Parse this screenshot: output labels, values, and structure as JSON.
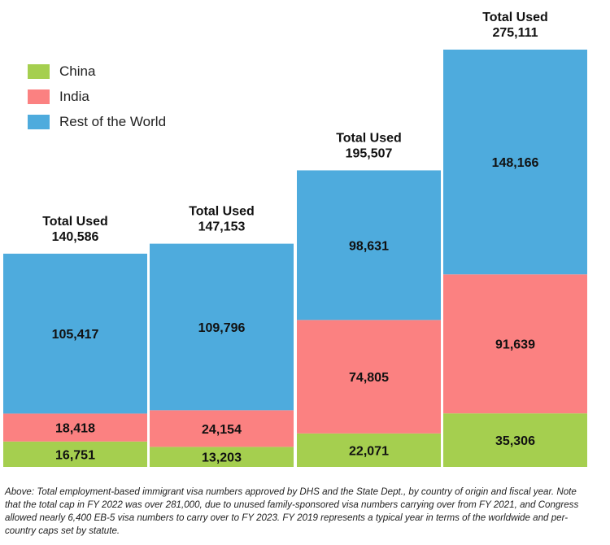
{
  "chart_data": {
    "type": "bar",
    "stacked": true,
    "categories": [
      "",
      "",
      "",
      ""
    ],
    "series": [
      {
        "name": "China",
        "color": "#a5cf4f",
        "values": [
          16751,
          13203,
          22071,
          35306
        ]
      },
      {
        "name": "India",
        "color": "#fb8181",
        "values": [
          18418,
          24154,
          74805,
          91639
        ]
      },
      {
        "name": "Rest of the World",
        "color": "#4eabdd",
        "values": [
          105417,
          109796,
          98631,
          148166
        ]
      }
    ],
    "totals": [
      140586,
      147153,
      195507,
      275111
    ],
    "total_label_prefix": "Total Used",
    "ylim": [
      0,
      275111
    ],
    "legend_position": "top-left",
    "grid": false
  },
  "legend": {
    "items": [
      {
        "label": "China",
        "color": "#a5cf4f"
      },
      {
        "label": "India",
        "color": "#fb8181"
      },
      {
        "label": "Rest of the World",
        "color": "#4eabdd"
      }
    ]
  },
  "caption": "Above: Total employment-based immigrant visa numbers approved by DHS and the State Dept., by country of origin and fiscal year. Note that the total cap in FY 2022 was over 281,000, due to unused family-sponsored visa numbers carrying over from FY 2021, and Congress allowed nearly 6,400 EB-5 visa numbers to carry over to FY 2023. FY 2019 represents a typical year in terms of the worldwide and per-country caps set by statute."
}
